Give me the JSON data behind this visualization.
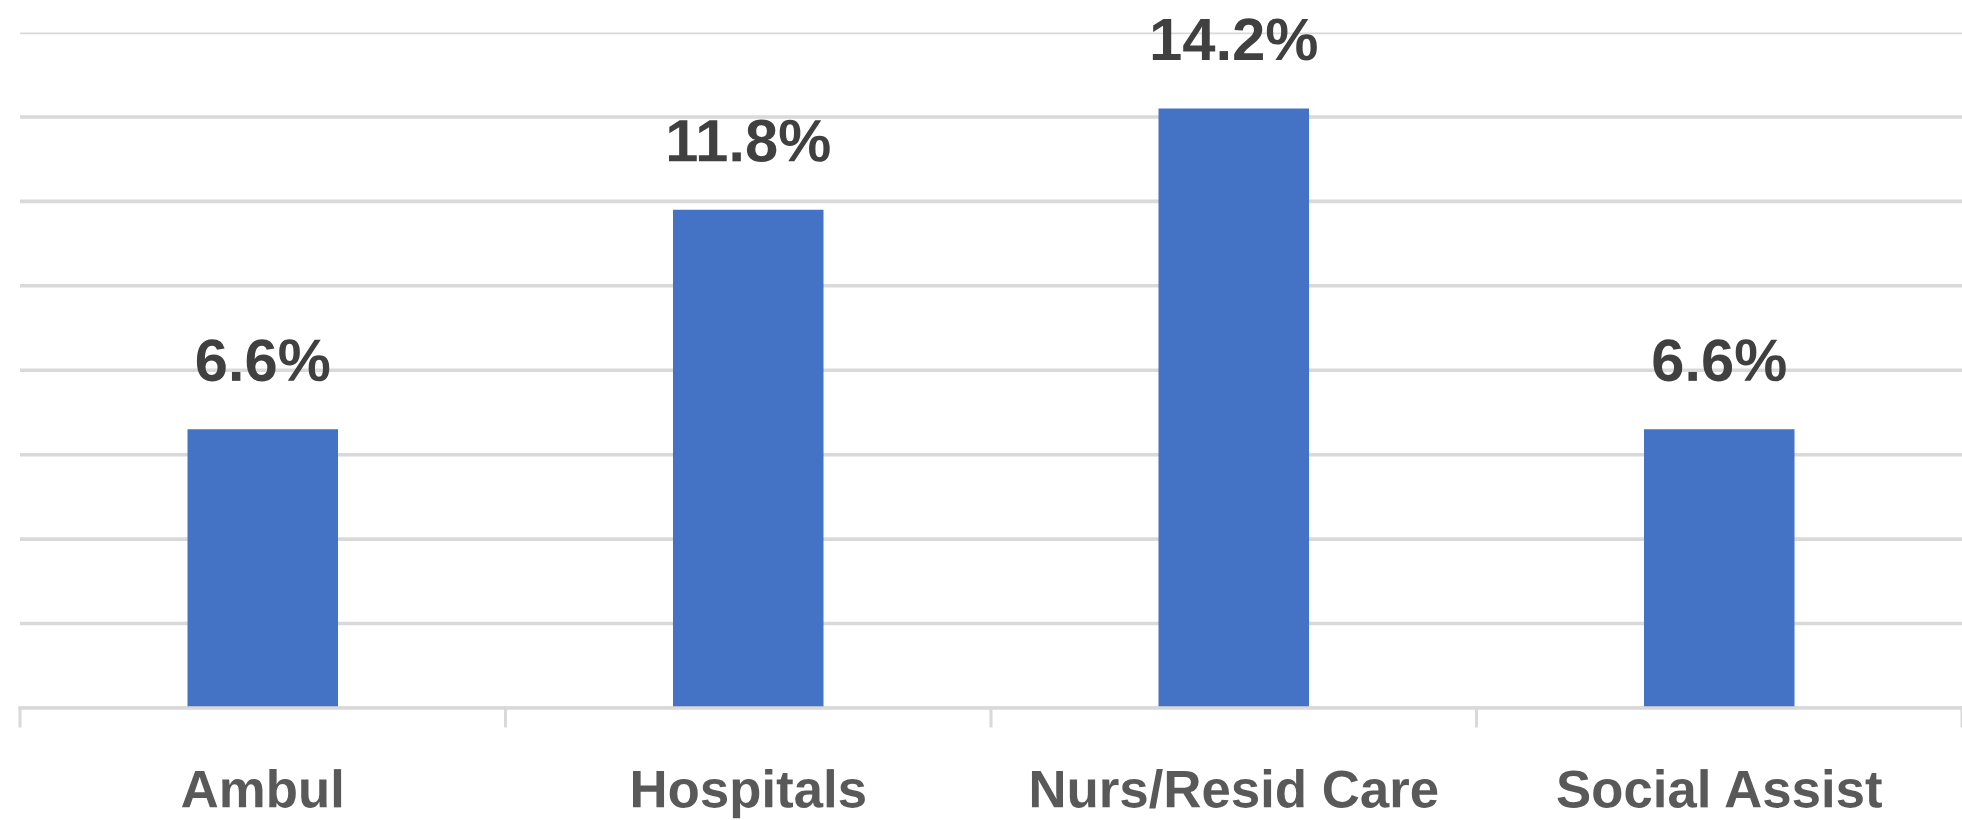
{
  "chart_data": {
    "type": "bar",
    "categories": [
      "Ambul",
      "Hospitals",
      "Nurs/Resid Care",
      "Social Assist"
    ],
    "values": [
      6.6,
      11.8,
      14.2,
      6.6
    ],
    "color": "#4472c4",
    "value_labels": [
      "6.6%",
      "11.8%",
      "14.2%",
      "6.6%"
    ],
    "yticks": [
      {
        "value": 0,
        "label": null
      },
      {
        "value": 2,
        "label": null
      },
      {
        "value": 4,
        "label": null
      },
      {
        "value": 6,
        "label": null
      },
      {
        "value": 8,
        "label": null
      },
      {
        "value": 10,
        "label": null
      },
      {
        "value": 12,
        "label": null
      },
      {
        "value": 14,
        "label": null
      },
      {
        "value": 16,
        "label": null
      }
    ],
    "tick_labels": "x",
    "grid": "y",
    "legend": false
  }
}
